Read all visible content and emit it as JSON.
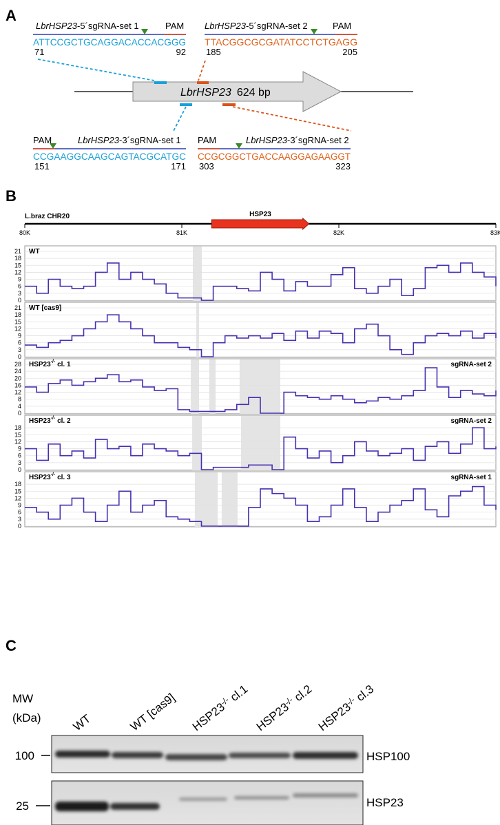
{
  "panel_labels": [
    "A",
    "B",
    "C"
  ],
  "panel_a": {
    "sgrnas": [
      {
        "gene": "LbrHSP23",
        "name": "-5´sgRNA-set 1",
        "pam": "PAM",
        "sequence": "ATTCCGCTGCAGGACACCACGGG",
        "start": 71,
        "end": 92
      },
      {
        "gene": "LbrHSP23",
        "name": "-5´sgRNA-set 2",
        "pam": "PAM",
        "sequence": "TTACGGCGCGATATCCTCTGAGG",
        "start": 185,
        "end": 205
      },
      {
        "gene": "LbrHSP23",
        "name": "-3´sgRNA-set 1",
        "pam": "PAM",
        "sequence": "CCGAAGGCAAGCAGTACGCATGC",
        "start": 151,
        "end": 171
      },
      {
        "gene": "LbrHSP23",
        "name": "-3´sgRNA-set 2",
        "pam": "PAM",
        "sequence": "CCGCGGCTGACCAAGGAGAAGGT",
        "start": 303,
        "end": 323
      }
    ],
    "gene_label": "LbrHSP23",
    "gene_length": "624 bp"
  },
  "genome_track": {
    "label": "L.braz CHR20",
    "gene": "HSP23",
    "gene_start": 81190,
    "gene_end": 81810,
    "xlim": [
      80000,
      83000
    ],
    "xticks": [
      {
        "value": 80000,
        "label": "80K"
      },
      {
        "value": 81000,
        "label": "81K"
      },
      {
        "value": 82000,
        "label": "82K"
      },
      {
        "value": 83000,
        "label": "83K"
      }
    ]
  },
  "chart_data": [
    {
      "type": "line",
      "title": "WT",
      "color": "#4a2fb0",
      "xlim": [
        80000,
        83000
      ],
      "ylim": [
        0,
        21
      ],
      "yticks": [
        0,
        3,
        6,
        9,
        12,
        15,
        18,
        21
      ],
      "shaded": [
        [
          81070,
          81127
        ]
      ],
      "x": [
        80000,
        80075,
        80150,
        80225,
        80300,
        80375,
        80450,
        80525,
        80600,
        80675,
        80750,
        80825,
        80900,
        80975,
        81050,
        81125,
        81200,
        81275,
        81350,
        81425,
        81500,
        81575,
        81650,
        81725,
        81800,
        81875,
        81950,
        82025,
        82100,
        82175,
        82250,
        82325,
        82400,
        82475,
        82550,
        82625,
        82700,
        82775,
        82850,
        82925,
        83000
      ],
      "values": [
        6,
        3,
        9,
        6,
        5,
        6,
        12,
        16,
        9,
        12,
        9,
        7,
        3,
        1,
        1,
        0,
        6,
        6,
        5,
        4,
        12,
        9,
        4,
        8,
        6,
        6,
        11,
        14,
        5,
        3,
        6,
        9,
        2,
        5,
        14,
        15,
        12,
        16,
        12,
        10,
        6
      ]
    },
    {
      "type": "line",
      "title": "WT [cas9]",
      "color": "#4a2fb0",
      "xlim": [
        80000,
        83000
      ],
      "ylim": [
        0,
        21
      ],
      "yticks": [
        0,
        3,
        6,
        9,
        12,
        15,
        18,
        21
      ],
      "shaded": [
        [
          81092,
          81110
        ]
      ],
      "x": [
        80000,
        80075,
        80150,
        80225,
        80300,
        80375,
        80450,
        80525,
        80600,
        80675,
        80750,
        80825,
        80900,
        80975,
        81050,
        81125,
        81200,
        81275,
        81350,
        81425,
        81500,
        81575,
        81650,
        81725,
        81800,
        81875,
        81950,
        82025,
        82100,
        82175,
        82250,
        82325,
        82400,
        82475,
        82550,
        82625,
        82700,
        82775,
        82850,
        82925,
        83000
      ],
      "values": [
        5,
        4,
        6,
        7,
        9,
        12,
        15,
        18,
        15,
        12,
        9,
        6,
        6,
        4,
        3,
        0,
        6,
        9,
        8,
        9,
        8,
        10,
        7,
        11,
        8,
        11,
        10,
        6,
        12,
        14,
        9,
        3,
        1,
        6,
        9,
        10,
        9,
        11,
        8,
        10,
        8
      ]
    },
    {
      "type": "line",
      "title": {
        "main": "HSP23",
        "sup": "-/-",
        "rest": " cl. 1"
      },
      "annotation": "sgRNA-set 2",
      "color": "#4a2fb0",
      "xlim": [
        80000,
        83000
      ],
      "ylim": [
        0,
        28
      ],
      "yticks": [
        0,
        4,
        8,
        12,
        16,
        20,
        24,
        28
      ],
      "shaded": [
        [
          81057,
          81110
        ],
        [
          81175,
          81215
        ],
        [
          81368,
          81627
        ]
      ],
      "x": [
        80000,
        80075,
        80150,
        80225,
        80300,
        80375,
        80450,
        80525,
        80600,
        80675,
        80750,
        80825,
        80900,
        80975,
        81050,
        81125,
        81200,
        81275,
        81350,
        81425,
        81500,
        81575,
        81650,
        81725,
        81800,
        81875,
        81950,
        82025,
        82100,
        82175,
        82250,
        82325,
        82400,
        82475,
        82550,
        82625,
        82700,
        82775,
        82850,
        82925,
        83000
      ],
      "values": [
        15,
        12,
        17,
        19,
        16,
        18,
        20,
        22,
        18,
        19,
        15,
        13,
        14,
        2,
        1,
        1,
        1,
        2,
        5,
        9,
        0,
        0,
        12,
        10,
        9,
        8,
        10,
        8,
        6,
        7,
        9,
        8,
        10,
        13,
        26,
        15,
        9,
        13,
        11,
        10,
        13
      ]
    },
    {
      "type": "line",
      "title": {
        "main": "HSP23",
        "sup": "-/-",
        "rest": " cl. 2"
      },
      "annotation": "sgRNA-set 2",
      "color": "#4a2fb0",
      "xlim": [
        80000,
        83000
      ],
      "ylim": [
        0,
        21
      ],
      "yticks": [
        0,
        3,
        6,
        9,
        12,
        15,
        18
      ],
      "shaded": [
        [
          81066,
          81127
        ],
        [
          81377,
          81627
        ]
      ],
      "x": [
        80000,
        80075,
        80150,
        80225,
        80300,
        80375,
        80450,
        80525,
        80600,
        80675,
        80750,
        80825,
        80900,
        80975,
        81050,
        81125,
        81200,
        81275,
        81350,
        81425,
        81500,
        81575,
        81650,
        81725,
        81800,
        81875,
        81950,
        82025,
        82100,
        82175,
        82250,
        82325,
        82400,
        82475,
        82550,
        82625,
        82700,
        82775,
        82850,
        82925,
        83000
      ],
      "values": [
        9,
        4,
        11,
        6,
        8,
        5,
        13,
        9,
        10,
        6,
        11,
        9,
        8,
        6,
        7,
        0,
        1,
        1,
        1,
        2,
        2,
        0,
        14,
        9,
        5,
        8,
        3,
        6,
        12,
        8,
        6,
        7,
        9,
        4,
        10,
        12,
        7,
        11,
        18,
        9,
        10
      ]
    },
    {
      "type": "line",
      "title": {
        "main": "HSP23",
        "sup": "-/-",
        "rest": " cl. 3"
      },
      "annotation": "sgRNA-set 1",
      "color": "#4a2fb0",
      "xlim": [
        80000,
        83000
      ],
      "ylim": [
        0,
        21
      ],
      "yticks": [
        0,
        3,
        6,
        9,
        12,
        15,
        18
      ],
      "shaded": [
        [
          81083,
          81228
        ],
        [
          81254,
          81355
        ]
      ],
      "x": [
        80000,
        80075,
        80150,
        80225,
        80300,
        80375,
        80450,
        80525,
        80600,
        80675,
        80750,
        80825,
        80900,
        80975,
        81050,
        81125,
        81200,
        81275,
        81350,
        81425,
        81500,
        81575,
        81650,
        81725,
        81800,
        81875,
        81950,
        82025,
        82100,
        82175,
        82250,
        82325,
        82400,
        82475,
        82550,
        82625,
        82700,
        82775,
        82850,
        82925,
        83000
      ],
      "values": [
        8,
        6,
        3,
        9,
        12,
        6,
        2,
        9,
        15,
        6,
        9,
        11,
        4,
        3,
        2,
        0,
        0,
        0,
        0,
        8,
        16,
        14,
        12,
        9,
        2,
        4,
        9,
        16,
        8,
        2,
        6,
        9,
        11,
        16,
        7,
        4,
        13,
        15,
        17,
        9,
        7
      ]
    }
  ],
  "panel_c": {
    "mw_label": [
      "MW",
      "(kDa)"
    ],
    "lanes": [
      {
        "main": "WT"
      },
      {
        "main": "WT [cas9]"
      },
      {
        "main": "HSP23",
        "sup": "-/-",
        "rest": " cl.1"
      },
      {
        "main": "HSP23",
        "sup": "-/-",
        "rest": " cl.2"
      },
      {
        "main": "HSP23",
        "sup": "-/-",
        "rest": " cl.3"
      }
    ],
    "markers": [
      100,
      25
    ],
    "bands": [
      "HSP100",
      "HSP23"
    ]
  }
}
